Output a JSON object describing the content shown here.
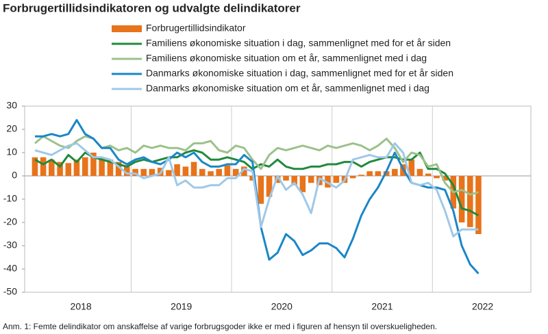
{
  "chart_data": {
    "type": "combo",
    "title": "Forbrugertillidsindikatoren og udvalgte delindikatorer",
    "note": "Anm. 1: Femte delindikator om anskaffelse af varige forbrugsgoder ikke er med i figuren af hensyn til overskueligheden.",
    "x": [
      2018.042,
      2018.125,
      2018.208,
      2018.292,
      2018.375,
      2018.458,
      2018.542,
      2018.625,
      2018.708,
      2018.792,
      2018.875,
      2018.958,
      2019.042,
      2019.125,
      2019.208,
      2019.292,
      2019.375,
      2019.458,
      2019.542,
      2019.625,
      2019.708,
      2019.792,
      2019.875,
      2019.958,
      2020.042,
      2020.125,
      2020.208,
      2020.292,
      2020.375,
      2020.458,
      2020.542,
      2020.625,
      2020.708,
      2020.792,
      2020.875,
      2020.958,
      2021.042,
      2021.125,
      2021.208,
      2021.292,
      2021.375,
      2021.458,
      2021.542,
      2021.625,
      2021.708,
      2021.792,
      2021.875,
      2021.958,
      2022.042,
      2022.125,
      2022.208,
      2022.292,
      2022.375,
      2022.458
    ],
    "xlim": [
      2017.94,
      2022.98
    ],
    "xticks": [
      {
        "value": 2018.5,
        "label": "2018"
      },
      {
        "value": 2019.5,
        "label": "2019"
      },
      {
        "value": 2020.5,
        "label": "2020"
      },
      {
        "value": 2021.5,
        "label": "2021"
      },
      {
        "value": 2022.5,
        "label": "2022"
      }
    ],
    "year_dividers": [
      2019,
      2020,
      2021,
      2022
    ],
    "ylim": [
      -50,
      30
    ],
    "yticks": [
      -50,
      -40,
      -30,
      -20,
      -10,
      0,
      10,
      20,
      30
    ],
    "series": [
      {
        "name": "Forbrugertillidsindikator",
        "kind": "bar",
        "color": "#e8731a",
        "values": [
          8,
          8,
          7,
          6,
          5.5,
          7,
          8,
          10,
          8,
          7,
          6,
          4,
          3,
          3,
          3,
          3.5,
          2.5,
          5,
          4,
          6,
          3,
          2,
          3,
          4.5,
          3,
          4,
          -2,
          -12,
          -9,
          -3,
          -2,
          -4,
          -7,
          -3,
          -4,
          -5,
          -3,
          -3,
          -1,
          0.5,
          2,
          2,
          2,
          3,
          5,
          7,
          3,
          1,
          -1,
          -2,
          -14,
          -20,
          -22,
          -25
        ]
      },
      {
        "name": "Familiens økonomiske situation i dag, sammenlignet med for et år siden",
        "kind": "line",
        "color": "#1f8a3c",
        "values": [
          7,
          5,
          7,
          4,
          9,
          6,
          10,
          8,
          7,
          6,
          5,
          4,
          6,
          7,
          6,
          7,
          8,
          8,
          10,
          11,
          10,
          7,
          7,
          8,
          7,
          6,
          3,
          5,
          4,
          7,
          4,
          3,
          3,
          4,
          4,
          5,
          5,
          6,
          6,
          4,
          6,
          7,
          8,
          8,
          7,
          7,
          10,
          3,
          3,
          1,
          -4,
          -14,
          -15,
          -17
        ]
      },
      {
        "name": "Familiens økonomiske  situation om et år, sammenlignet med i dag",
        "kind": "line",
        "color": "#9bc18a",
        "values": [
          14,
          17,
          15,
          13,
          12,
          15,
          17,
          16,
          12,
          13,
          11,
          12,
          10,
          13,
          12,
          13,
          12,
          12,
          11,
          14,
          14,
          15,
          11,
          10,
          13,
          12,
          7,
          3,
          9,
          12,
          11,
          12,
          13,
          12,
          11,
          13,
          12,
          13,
          14,
          13,
          11,
          13,
          16,
          12,
          6,
          10,
          9,
          4,
          5,
          -3,
          -7,
          -6,
          -8,
          -7
        ]
      },
      {
        "name": "Danmarks økonomiske situation i dag, sammenlignet med for et år siden",
        "kind": "line",
        "color": "#1a86c8",
        "values": [
          17,
          17,
          18,
          17,
          18,
          24,
          18,
          16,
          12,
          12,
          7,
          5,
          7,
          8,
          6,
          5,
          7,
          10,
          8,
          10,
          6,
          4,
          4,
          5,
          5,
          9,
          6,
          -22,
          -36,
          -33,
          -25,
          -28,
          -34,
          -32,
          -29,
          -29,
          -31,
          -35,
          -27,
          -17,
          -10,
          -5,
          2,
          10,
          3,
          -3,
          -4,
          -5,
          -5,
          -6,
          -15,
          -30,
          -38,
          -42
        ]
      },
      {
        "name": "Danmarks økonomiske situation om et år, sammenlignet med i dag",
        "kind": "line",
        "color": "#9fc8e8",
        "values": [
          11,
          10,
          9,
          11,
          13,
          14,
          11,
          8,
          8,
          7,
          4,
          1,
          1,
          -1,
          0,
          1,
          8,
          -4,
          -2,
          -5,
          -5,
          -4,
          -4,
          -1,
          -1,
          3,
          2,
          -22,
          -10,
          0,
          -6,
          -3,
          -8,
          -16,
          -1,
          -3,
          -5,
          -2,
          7,
          8,
          9,
          8,
          8,
          14,
          10,
          -3,
          -4,
          -3,
          -6,
          -15,
          -26,
          -23,
          -23,
          -23
        ]
      }
    ]
  }
}
